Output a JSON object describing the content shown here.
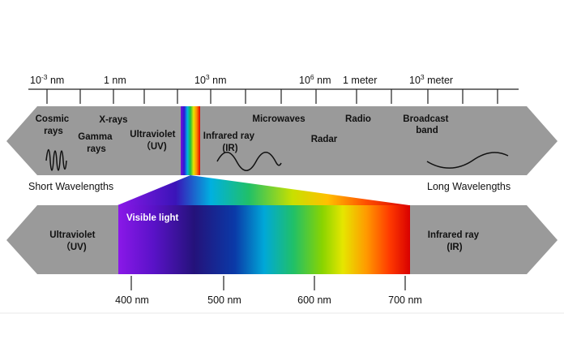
{
  "top_scale": {
    "labels": [
      {
        "base": "10",
        "exp": "-3",
        "unit": " nm"
      },
      {
        "base": "1 nm",
        "exp": "",
        "unit": ""
      },
      {
        "base": "10",
        "exp": "3",
        "unit": " nm"
      },
      {
        "base": "10",
        "exp": "6",
        "unit": " nm"
      },
      {
        "base": "1 meter",
        "exp": "",
        "unit": ""
      },
      {
        "base": "10",
        "exp": "3",
        "unit": " meter"
      }
    ]
  },
  "spectrum_bands": [
    {
      "line1": "Cosmic",
      "line2": "rays"
    },
    {
      "line1": "Gamma",
      "line2": "rays"
    },
    {
      "line1": "X-rays",
      "line2": ""
    },
    {
      "line1": "Ultraviolet",
      "line2": "（UV)"
    },
    {
      "line1": "Infrared ray",
      "line2": "(IR)"
    },
    {
      "line1": "Microwaves",
      "line2": ""
    },
    {
      "line1": "Radar",
      "line2": ""
    },
    {
      "line1": "Radio",
      "line2": ""
    },
    {
      "line1": "Broadcast",
      "line2": "band"
    }
  ],
  "side_labels": {
    "short": "Short Wavelengths",
    "long": "Long Wavelengths"
  },
  "visible_band": {
    "left_line1": "Ultraviolet",
    "left_line2": "（UV)",
    "title": "Visible light",
    "right_line1": "Infrared ray",
    "right_line2": "(IR)"
  },
  "bottom_scale": {
    "labels": [
      "400 nm",
      "500 nm",
      "600 nm",
      "700 nm"
    ]
  },
  "colors": {
    "band_gray": "#9a9a9a",
    "axis": "#222222",
    "divider": "#e8e8e8"
  }
}
